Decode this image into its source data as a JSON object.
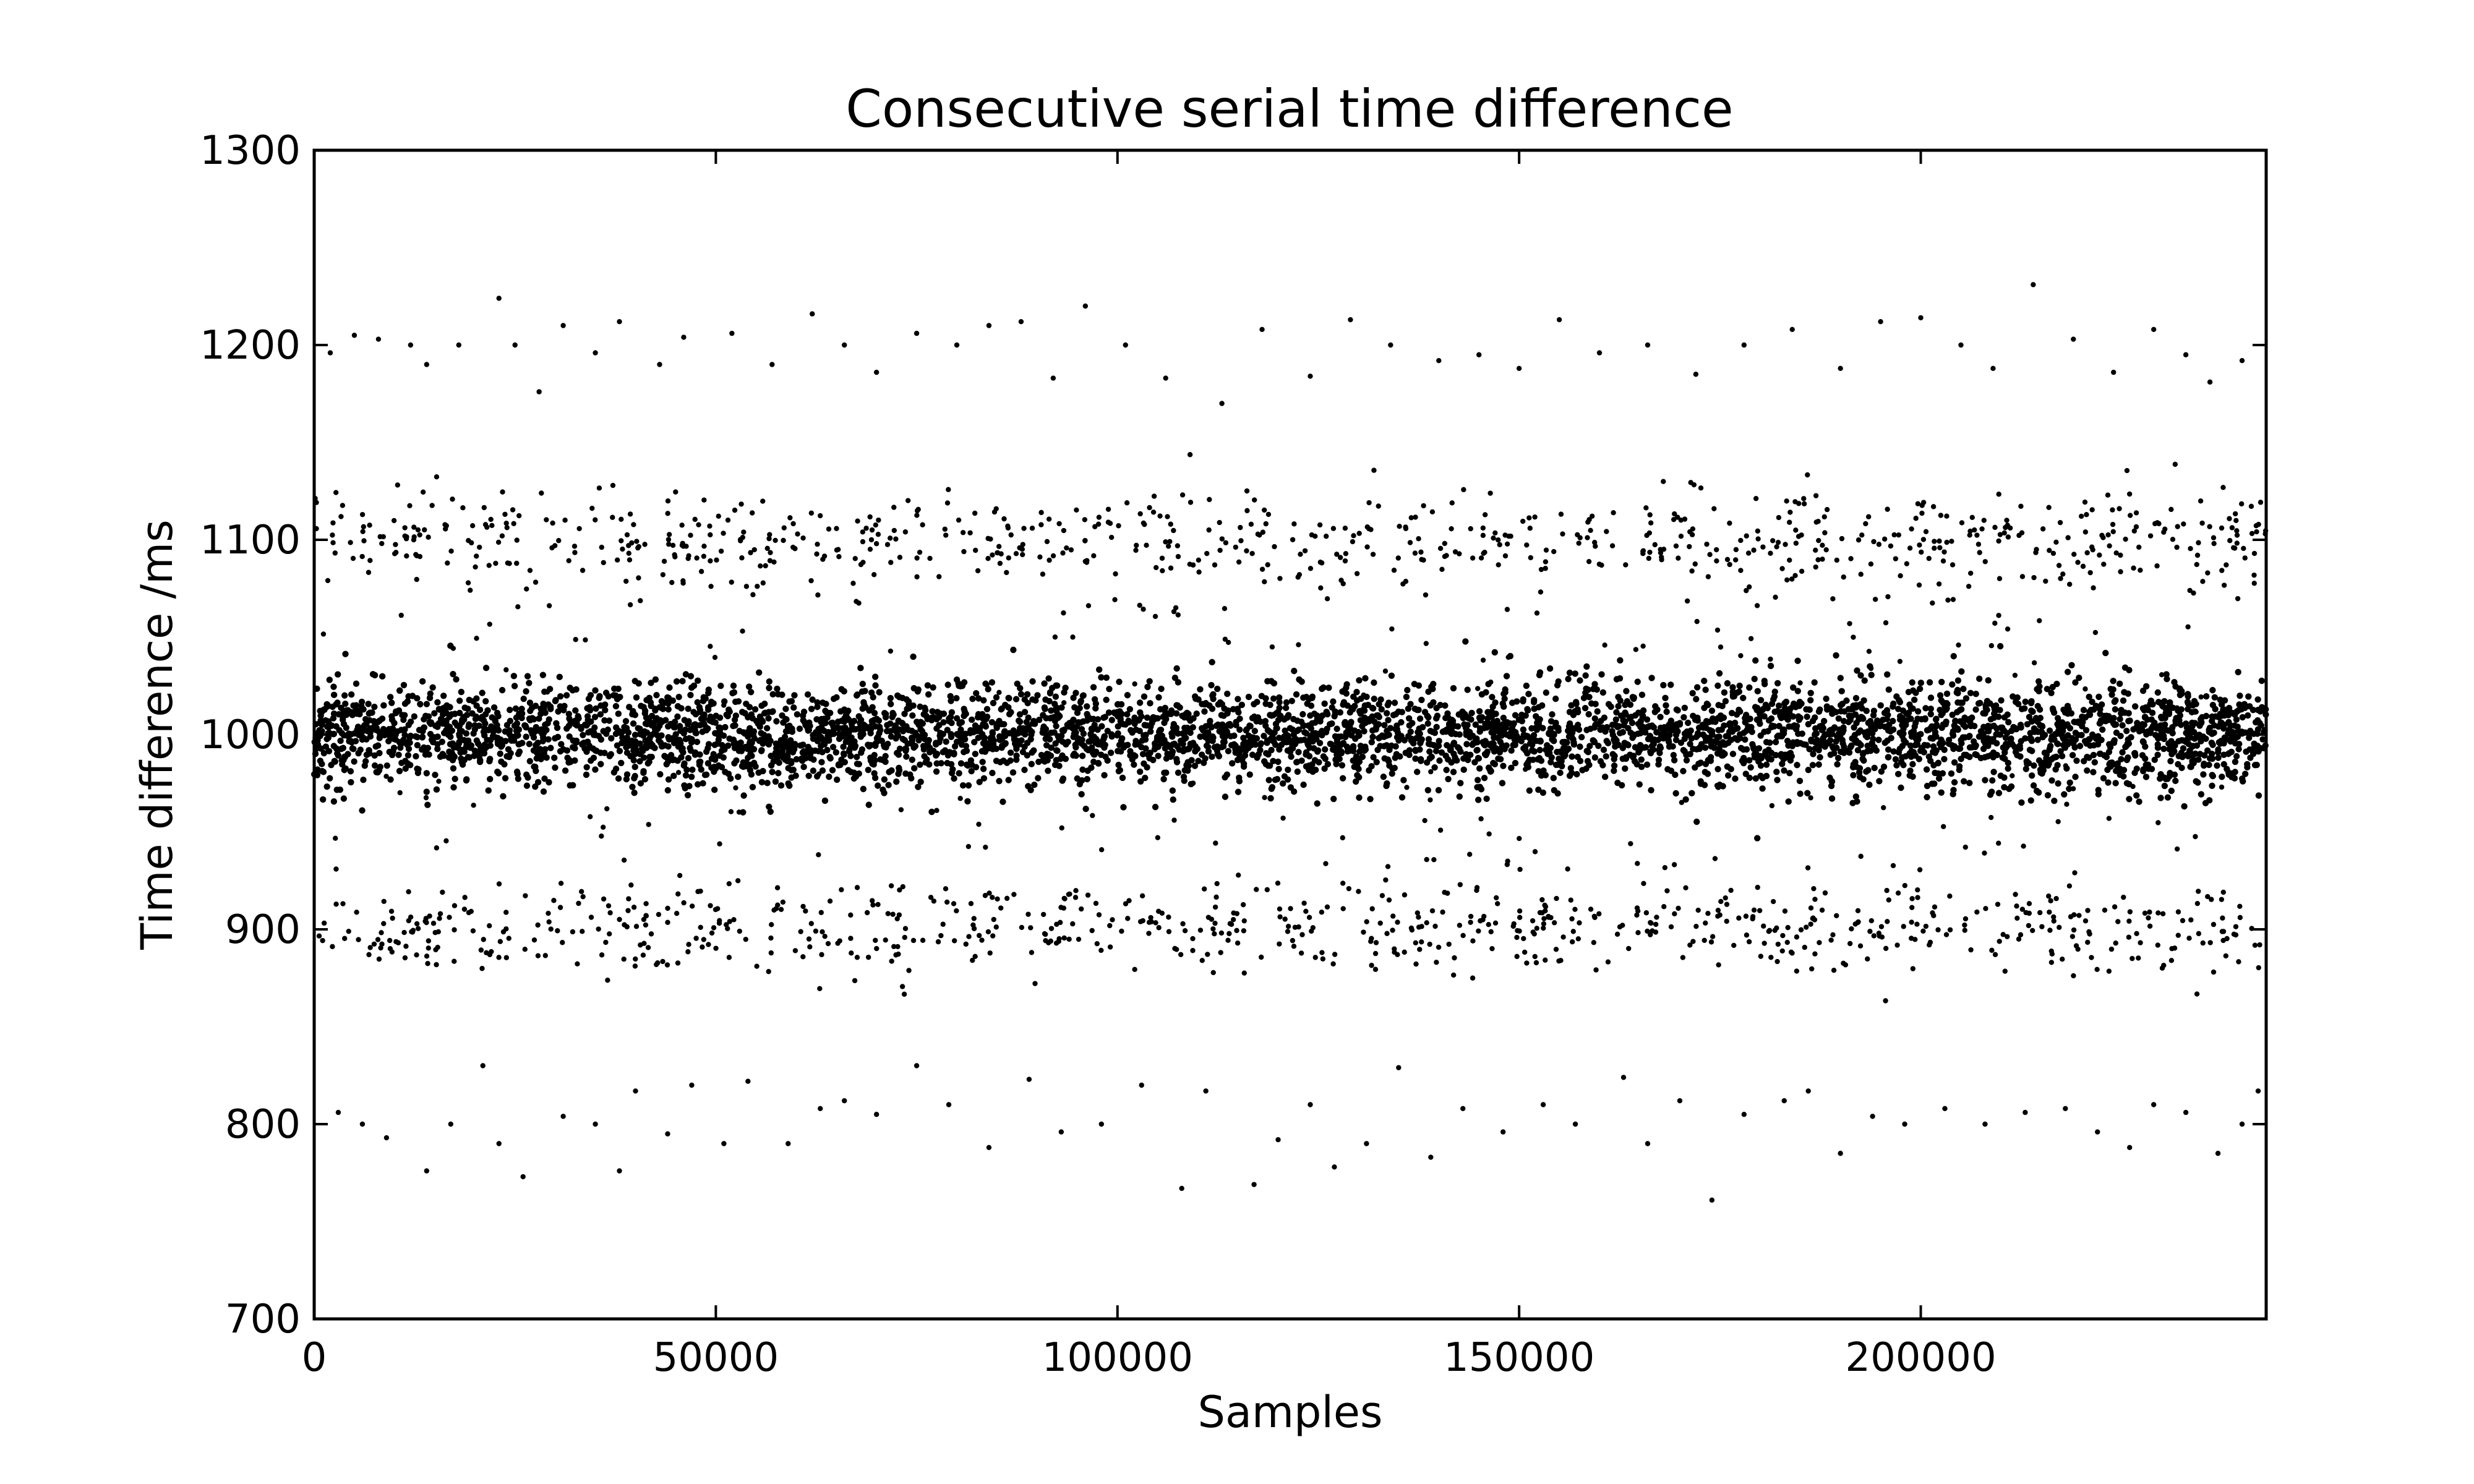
{
  "chart_data": {
    "type": "scatter",
    "title": "Consecutive serial time difference",
    "xlabel": "Samples",
    "ylabel": "Time difference /ms",
    "xlim": [
      0,
      243000
    ],
    "ylim": [
      700,
      1300
    ],
    "x_ticks": [
      0,
      50000,
      100000,
      150000,
      200000
    ],
    "x_tick_labels": [
      "0",
      "50000",
      "100000",
      "150000",
      "200000"
    ],
    "y_ticks": [
      700,
      800,
      900,
      1000,
      1100,
      1200,
      1300
    ],
    "y_tick_labels": [
      "700",
      "800",
      "900",
      "1000",
      "1100",
      "1200",
      "1300"
    ],
    "grid": false,
    "legend": "none",
    "marker_color": "#000000",
    "series": [
      {
        "bands": [
          {
            "center": 1000,
            "spread_sd": 13,
            "share": 0.74
          },
          {
            "center": 1100,
            "spread_sd": 12,
            "share": 0.115
          },
          {
            "center": 900,
            "spread_sd": 12,
            "share": 0.115
          },
          {
            "center": 1050,
            "spread_sd": 20,
            "share": 0.015
          },
          {
            "center": 950,
            "spread_sd": 20,
            "share": 0.015
          }
        ],
        "sparse_points": [
          {
            "x": 2000,
            "y": 1196
          },
          {
            "x": 5000,
            "y": 1205
          },
          {
            "x": 8000,
            "y": 1203
          },
          {
            "x": 12000,
            "y": 1200
          },
          {
            "x": 14000,
            "y": 1190
          },
          {
            "x": 18000,
            "y": 1200
          },
          {
            "x": 23000,
            "y": 1224
          },
          {
            "x": 25000,
            "y": 1200
          },
          {
            "x": 28000,
            "y": 1176
          },
          {
            "x": 31000,
            "y": 1210
          },
          {
            "x": 35000,
            "y": 1196
          },
          {
            "x": 38000,
            "y": 1212
          },
          {
            "x": 43000,
            "y": 1190
          },
          {
            "x": 46000,
            "y": 1204
          },
          {
            "x": 52000,
            "y": 1206
          },
          {
            "x": 57000,
            "y": 1190
          },
          {
            "x": 62000,
            "y": 1216
          },
          {
            "x": 66000,
            "y": 1200
          },
          {
            "x": 70000,
            "y": 1186
          },
          {
            "x": 75000,
            "y": 1206
          },
          {
            "x": 80000,
            "y": 1200
          },
          {
            "x": 84000,
            "y": 1210
          },
          {
            "x": 88000,
            "y": 1212
          },
          {
            "x": 92000,
            "y": 1183
          },
          {
            "x": 96000,
            "y": 1220
          },
          {
            "x": 101000,
            "y": 1200
          },
          {
            "x": 106000,
            "y": 1183
          },
          {
            "x": 113000,
            "y": 1170
          },
          {
            "x": 118000,
            "y": 1208
          },
          {
            "x": 124000,
            "y": 1184
          },
          {
            "x": 129000,
            "y": 1213
          },
          {
            "x": 134000,
            "y": 1200
          },
          {
            "x": 140000,
            "y": 1192
          },
          {
            "x": 145000,
            "y": 1195
          },
          {
            "x": 150000,
            "y": 1188
          },
          {
            "x": 155000,
            "y": 1213
          },
          {
            "x": 160000,
            "y": 1196
          },
          {
            "x": 166000,
            "y": 1200
          },
          {
            "x": 172000,
            "y": 1185
          },
          {
            "x": 178000,
            "y": 1200
          },
          {
            "x": 184000,
            "y": 1208
          },
          {
            "x": 190000,
            "y": 1188
          },
          {
            "x": 195000,
            "y": 1212
          },
          {
            "x": 200000,
            "y": 1214
          },
          {
            "x": 205000,
            "y": 1200
          },
          {
            "x": 209000,
            "y": 1188
          },
          {
            "x": 214000,
            "y": 1231
          },
          {
            "x": 219000,
            "y": 1203
          },
          {
            "x": 224000,
            "y": 1186
          },
          {
            "x": 229000,
            "y": 1208
          },
          {
            "x": 233000,
            "y": 1195
          },
          {
            "x": 236000,
            "y": 1181
          },
          {
            "x": 240000,
            "y": 1192
          },
          {
            "x": 3000,
            "y": 806
          },
          {
            "x": 6000,
            "y": 800
          },
          {
            "x": 9000,
            "y": 793
          },
          {
            "x": 14000,
            "y": 776
          },
          {
            "x": 17000,
            "y": 800
          },
          {
            "x": 21000,
            "y": 830
          },
          {
            "x": 23000,
            "y": 790
          },
          {
            "x": 26000,
            "y": 773
          },
          {
            "x": 31000,
            "y": 804
          },
          {
            "x": 35000,
            "y": 800
          },
          {
            "x": 38000,
            "y": 776
          },
          {
            "x": 40000,
            "y": 817
          },
          {
            "x": 44000,
            "y": 795
          },
          {
            "x": 47000,
            "y": 820
          },
          {
            "x": 51000,
            "y": 790
          },
          {
            "x": 54000,
            "y": 822
          },
          {
            "x": 59000,
            "y": 790
          },
          {
            "x": 63000,
            "y": 808
          },
          {
            "x": 66000,
            "y": 812
          },
          {
            "x": 70000,
            "y": 805
          },
          {
            "x": 75000,
            "y": 830
          },
          {
            "x": 79000,
            "y": 810
          },
          {
            "x": 84000,
            "y": 788
          },
          {
            "x": 89000,
            "y": 823
          },
          {
            "x": 93000,
            "y": 796
          },
          {
            "x": 98000,
            "y": 800
          },
          {
            "x": 103000,
            "y": 820
          },
          {
            "x": 108000,
            "y": 767
          },
          {
            "x": 111000,
            "y": 817
          },
          {
            "x": 117000,
            "y": 769
          },
          {
            "x": 120000,
            "y": 792
          },
          {
            "x": 124000,
            "y": 810
          },
          {
            "x": 127000,
            "y": 778
          },
          {
            "x": 131000,
            "y": 790
          },
          {
            "x": 135000,
            "y": 829
          },
          {
            "x": 139000,
            "y": 783
          },
          {
            "x": 143000,
            "y": 808
          },
          {
            "x": 148000,
            "y": 796
          },
          {
            "x": 153000,
            "y": 810
          },
          {
            "x": 157000,
            "y": 800
          },
          {
            "x": 163000,
            "y": 824
          },
          {
            "x": 166000,
            "y": 790
          },
          {
            "x": 170000,
            "y": 812
          },
          {
            "x": 174000,
            "y": 761
          },
          {
            "x": 178000,
            "y": 805
          },
          {
            "x": 183000,
            "y": 812
          },
          {
            "x": 186000,
            "y": 817
          },
          {
            "x": 190000,
            "y": 785
          },
          {
            "x": 194000,
            "y": 804
          },
          {
            "x": 198000,
            "y": 800
          },
          {
            "x": 203000,
            "y": 808
          },
          {
            "x": 208000,
            "y": 800
          },
          {
            "x": 213000,
            "y": 806
          },
          {
            "x": 218000,
            "y": 808
          },
          {
            "x": 222000,
            "y": 796
          },
          {
            "x": 226000,
            "y": 788
          },
          {
            "x": 229000,
            "y": 810
          },
          {
            "x": 233000,
            "y": 806
          },
          {
            "x": 237000,
            "y": 785
          },
          {
            "x": 240000,
            "y": 800
          },
          {
            "x": 242000,
            "y": 817
          }
        ]
      }
    ]
  }
}
